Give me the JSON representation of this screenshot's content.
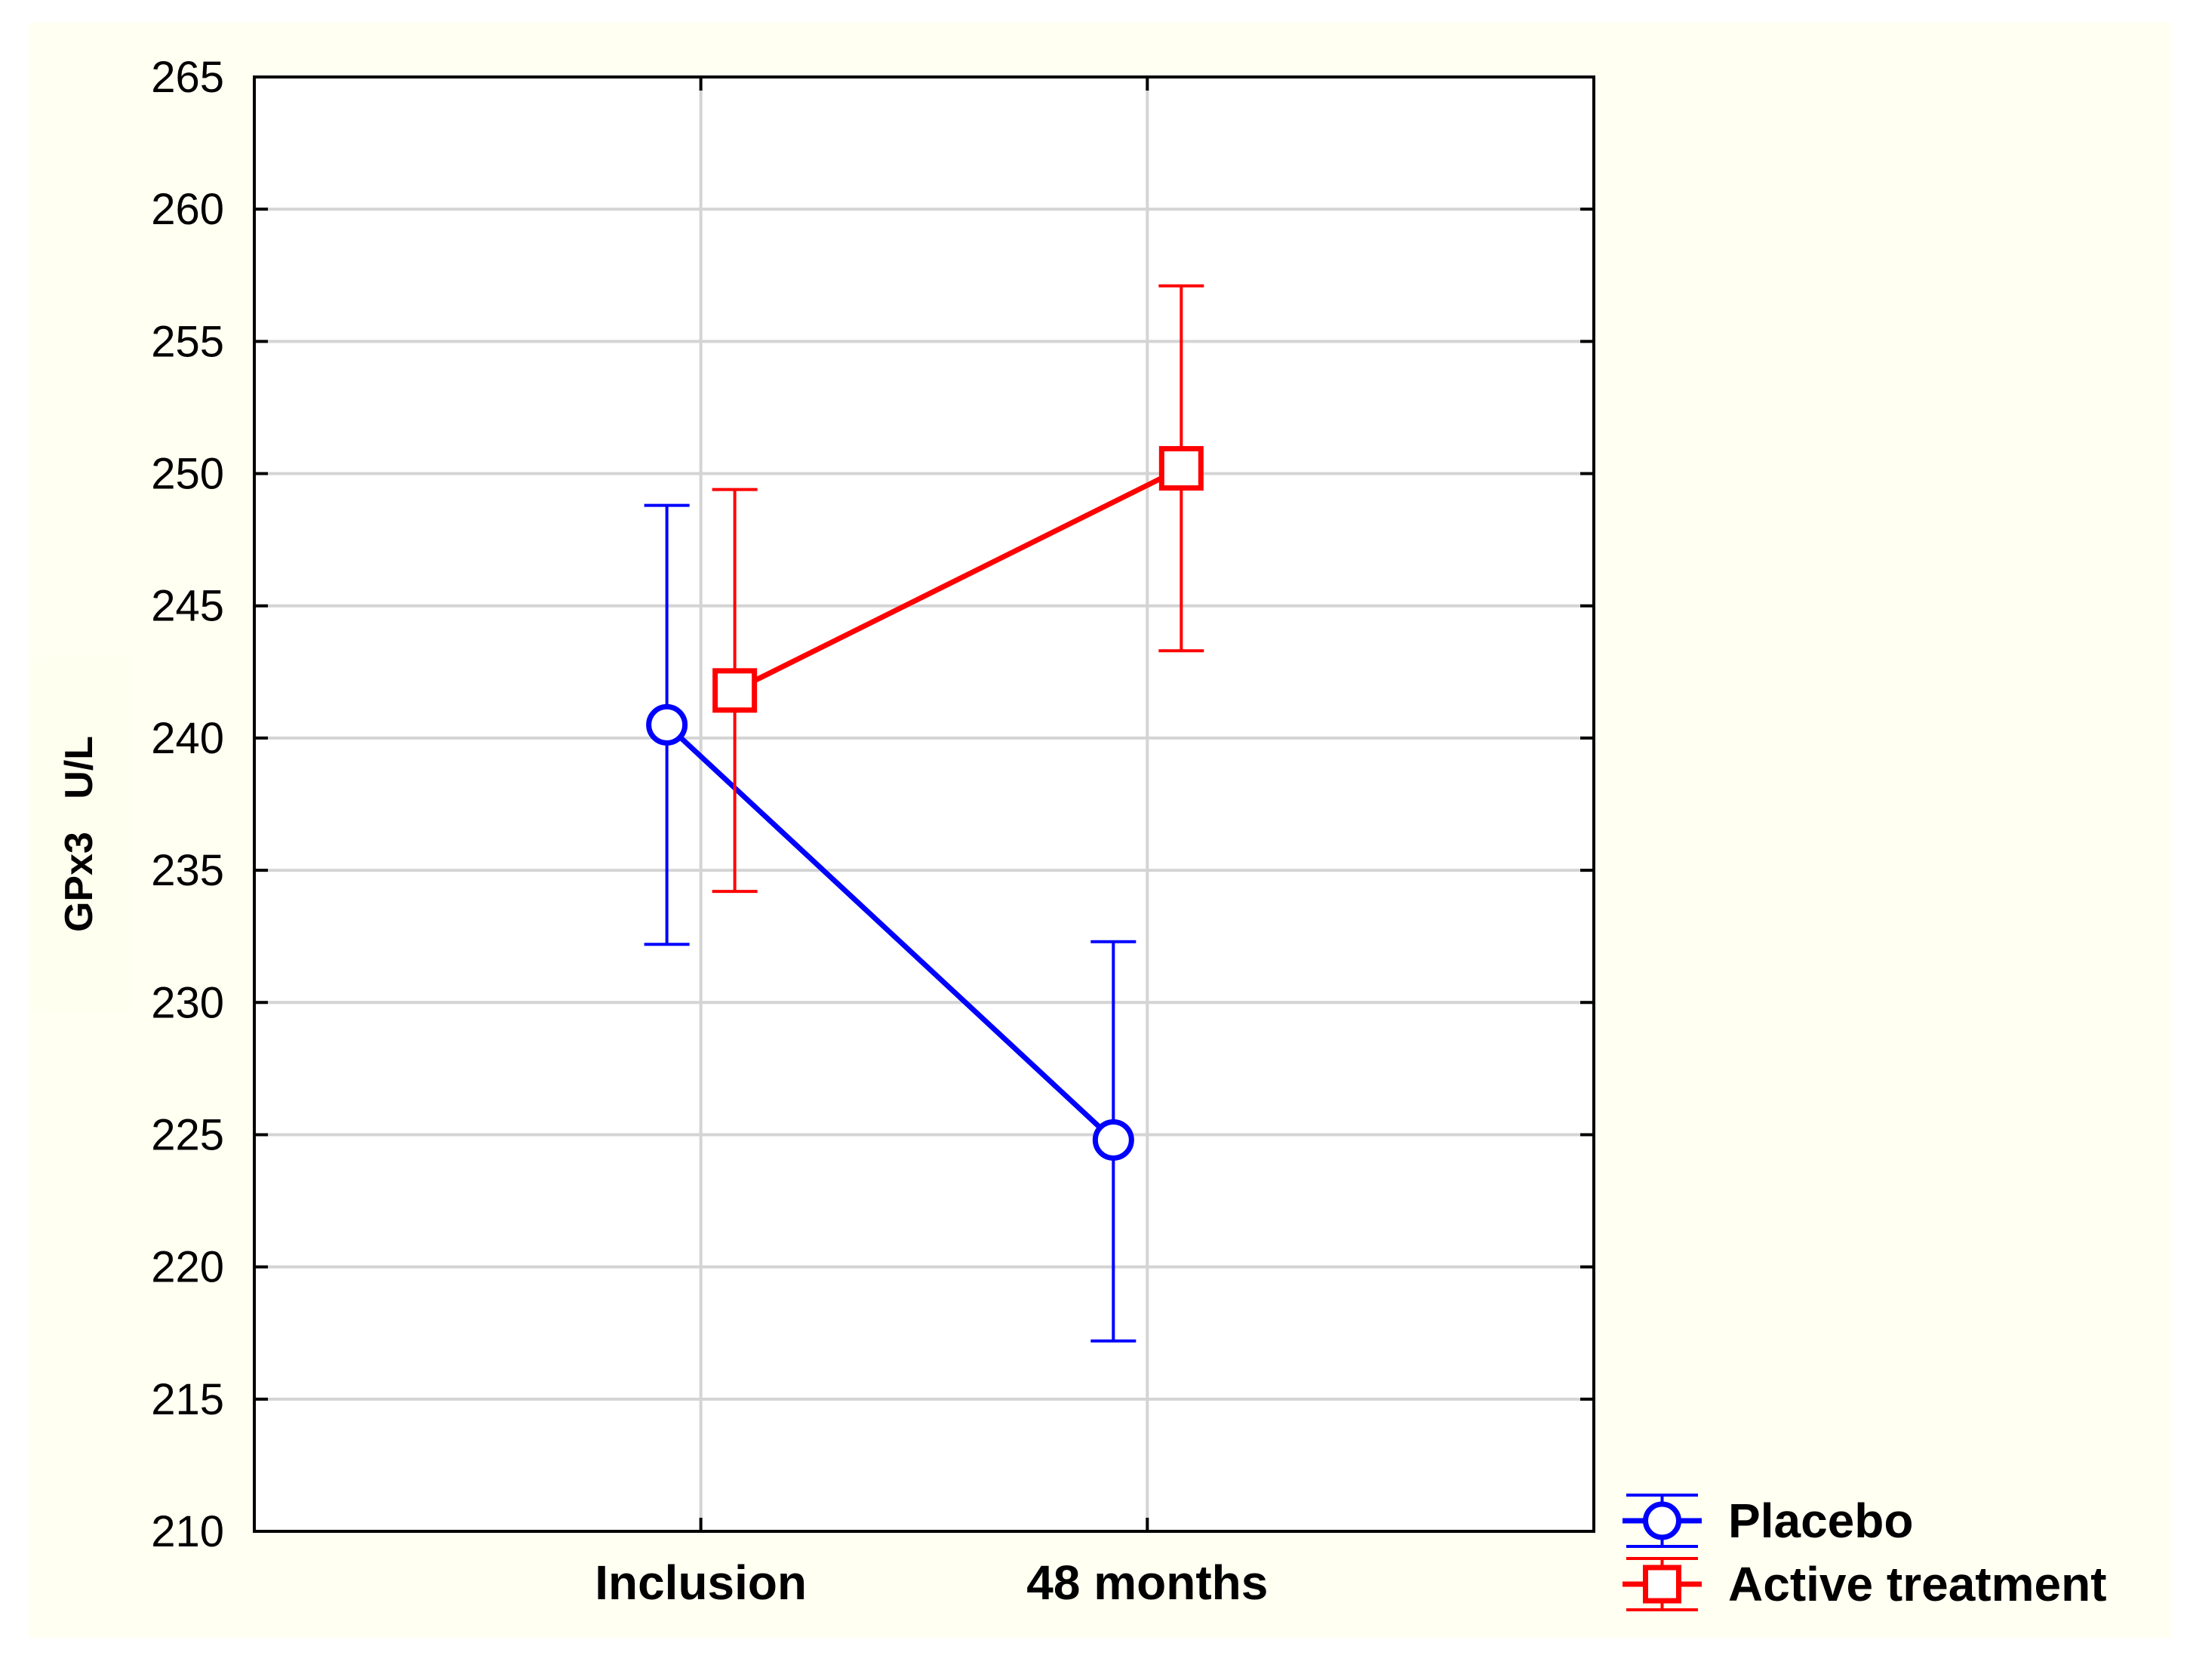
{
  "chart_data": {
    "type": "line",
    "title": "",
    "xlabel": "",
    "ylabel": "GPx3   U/L",
    "categories": [
      "Inclusion",
      "48 months"
    ],
    "ylim": [
      210,
      265
    ],
    "yticks": [
      210,
      215,
      220,
      225,
      230,
      235,
      240,
      245,
      250,
      255,
      260,
      265
    ],
    "grid": true,
    "legend_position": "bottom-right outside",
    "series": [
      {
        "name": "Placebo",
        "color": "#0000ff",
        "marker": "circle",
        "values": [
          240.5,
          224.8
        ],
        "error_low": [
          232.2,
          217.2
        ],
        "error_high": [
          248.8,
          232.3
        ]
      },
      {
        "name": "Active treatment",
        "color": "#ff0000",
        "marker": "square",
        "values": [
          241.8,
          250.2
        ],
        "error_low": [
          234.2,
          243.3
        ],
        "error_high": [
          249.4,
          257.1
        ]
      }
    ]
  }
}
